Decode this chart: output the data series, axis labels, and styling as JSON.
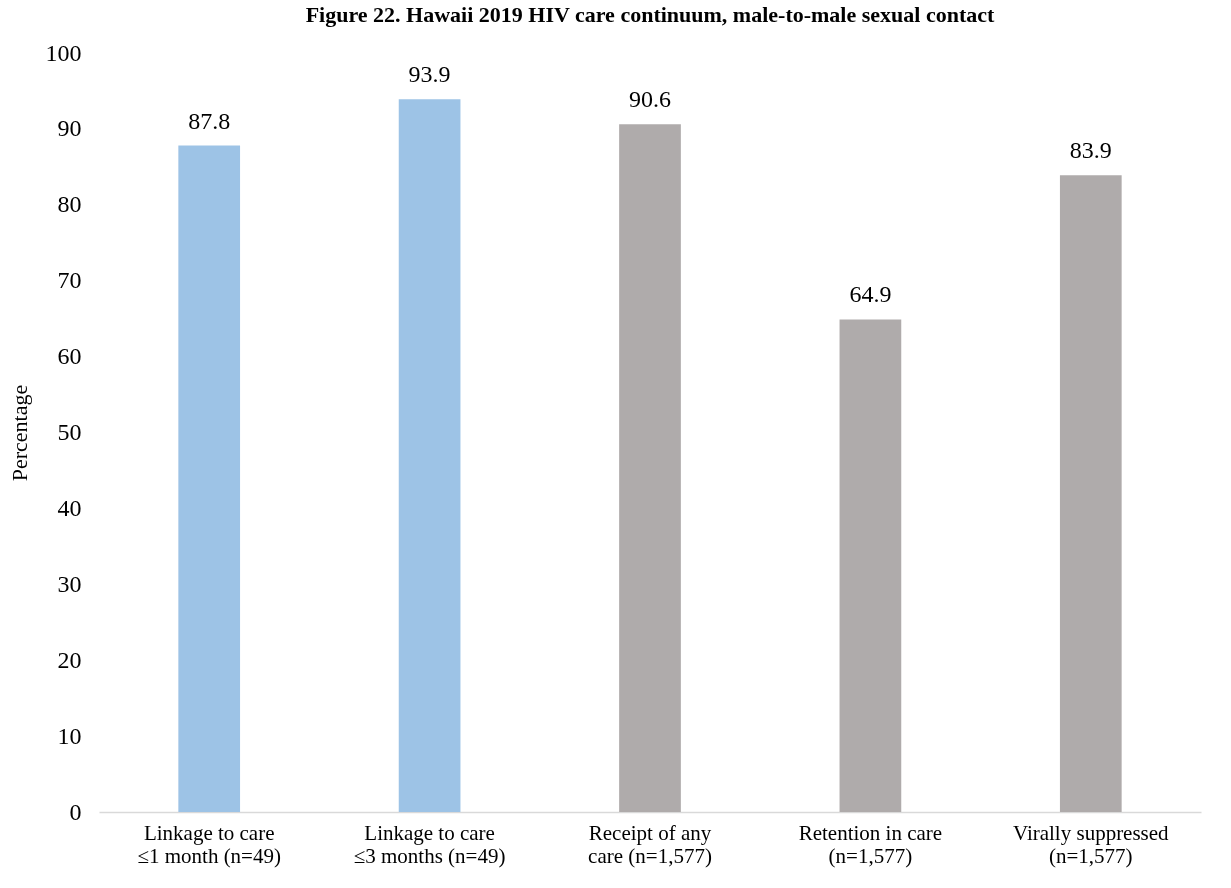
{
  "chart_data": {
    "type": "bar",
    "title": "Figure 22. Hawaii 2019 HIV care continuum, male-to-male sexual contact",
    "ylabel": "Percentage",
    "categories": [
      "Linkage to care\n≤1 month (n=49)",
      "Linkage to care\n≤3 months (n=49)",
      "Receipt of any\ncare (n=1,577)",
      "Retention in care\n(n=1,577)",
      "Virally suppressed\n(n=1,577)"
    ],
    "values": [
      87.8,
      93.9,
      90.6,
      64.9,
      83.9
    ],
    "colors": [
      "#9dc3e6",
      "#9dc3e6",
      "#afabab",
      "#afabab",
      "#afabab"
    ],
    "ylim": [
      0,
      100
    ],
    "yticks": [
      0,
      10,
      20,
      30,
      40,
      50,
      60,
      70,
      80,
      90,
      100
    ],
    "data_labels": true,
    "grid": false,
    "legend": false
  }
}
